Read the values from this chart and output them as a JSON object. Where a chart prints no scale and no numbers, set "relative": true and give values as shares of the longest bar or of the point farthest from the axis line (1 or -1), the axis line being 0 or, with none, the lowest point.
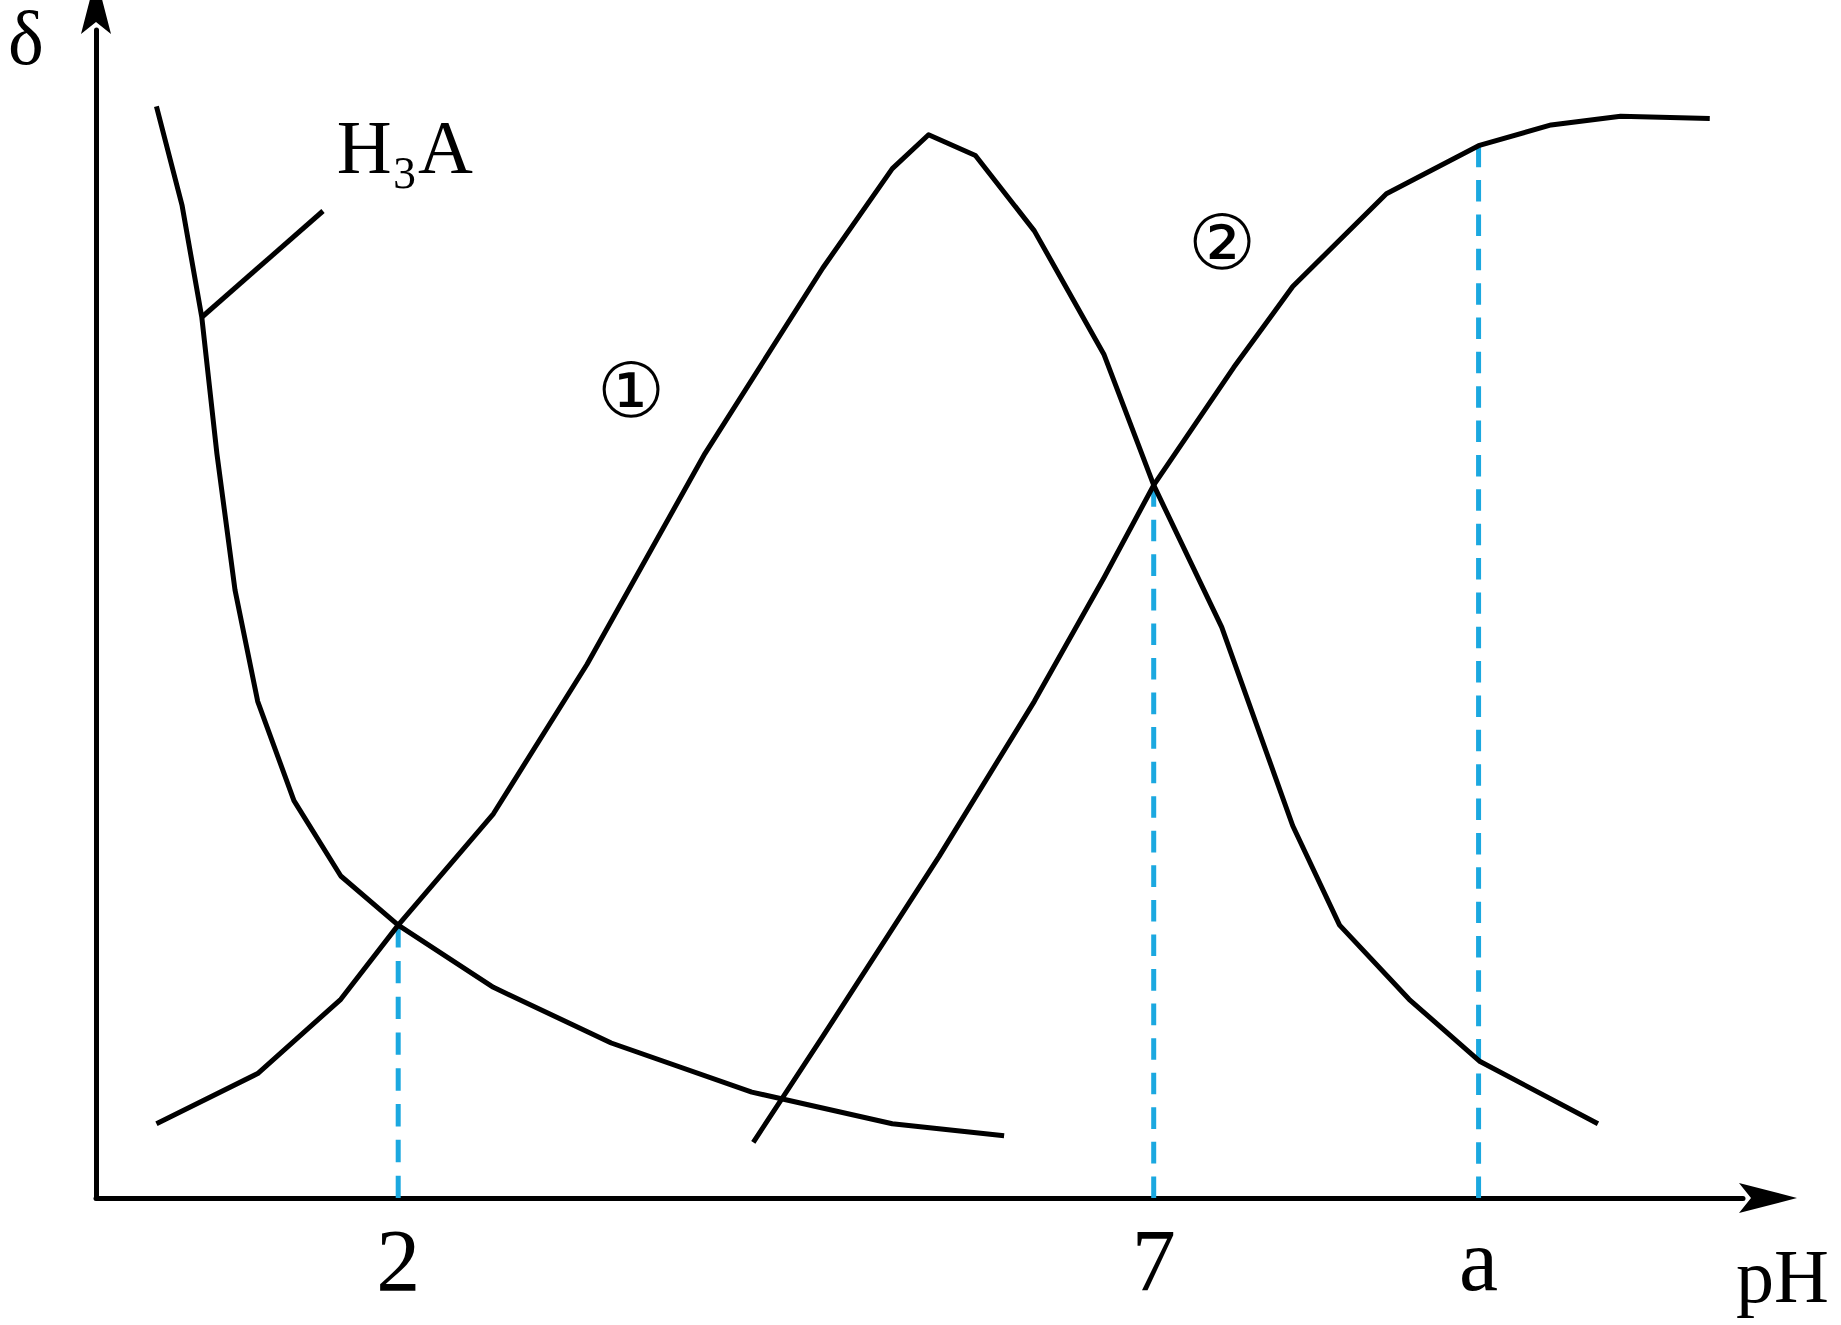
{
  "chart_data": {
    "type": "line",
    "relative": true,
    "xlabel": "pH",
    "ylabel": "δ",
    "xlim": [
      0,
      10.9
    ],
    "xticks": [
      2,
      7,
      {
        "value": 9.15,
        "label": "a"
      }
    ],
    "marker": "none",
    "line_style": "solid",
    "series": [
      {
        "color": "#000000",
        "x": [
          0.4,
          0.57,
          0.7,
          0.8,
          0.92,
          1.07,
          1.31,
          1.62,
          2.0,
          2.63,
          3.41,
          4.34,
          5.27,
          6.01
        ],
        "values": [
          1.0,
          0.909,
          0.807,
          0.682,
          0.557,
          0.455,
          0.364,
          0.295,
          0.25,
          0.193,
          0.142,
          0.097,
          0.068,
          0.057
        ]
      },
      {
        "color": "#000000",
        "x": [
          0.4,
          1.07,
          1.62,
          2.0,
          2.63,
          3.25,
          4.03,
          4.81,
          5.27,
          5.51,
          5.82,
          6.21,
          6.67,
          7.0,
          7.45,
          7.92,
          8.23,
          8.69,
          9.16,
          9.94
        ],
        "values": [
          0.068,
          0.114,
          0.182,
          0.25,
          0.352,
          0.489,
          0.682,
          0.852,
          0.943,
          0.974,
          0.955,
          0.886,
          0.773,
          0.653,
          0.523,
          0.341,
          0.25,
          0.182,
          0.125,
          0.068
        ]
      },
      {
        "color": "#000000",
        "x": [
          4.35,
          4.81,
          5.58,
          6.21,
          6.67,
          7.0,
          7.53,
          7.92,
          8.54,
          9.15,
          9.63,
          10.09,
          10.68
        ],
        "values": [
          0.051,
          0.148,
          0.313,
          0.455,
          0.568,
          0.653,
          0.761,
          0.835,
          0.92,
          0.964,
          0.983,
          0.991,
          0.989
        ]
      },
      {
        "color": "#1ba8e0",
        "line_style": "dashed",
        "x": [
          2,
          2
        ],
        "values": [
          0,
          0.25
        ]
      },
      {
        "color": "#1ba8e0",
        "line_style": "dashed",
        "x": [
          7,
          7
        ],
        "values": [
          0,
          0.653
        ]
      },
      {
        "color": "#1ba8e0",
        "line_style": "dashed",
        "x": [
          9.15,
          9.15
        ],
        "values": [
          0,
          0.964
        ]
      }
    ],
    "annotations": [
      {
        "text": "H₃A",
        "x": 0.7,
        "y": 0.807
      },
      "①",
      "②"
    ]
  }
}
